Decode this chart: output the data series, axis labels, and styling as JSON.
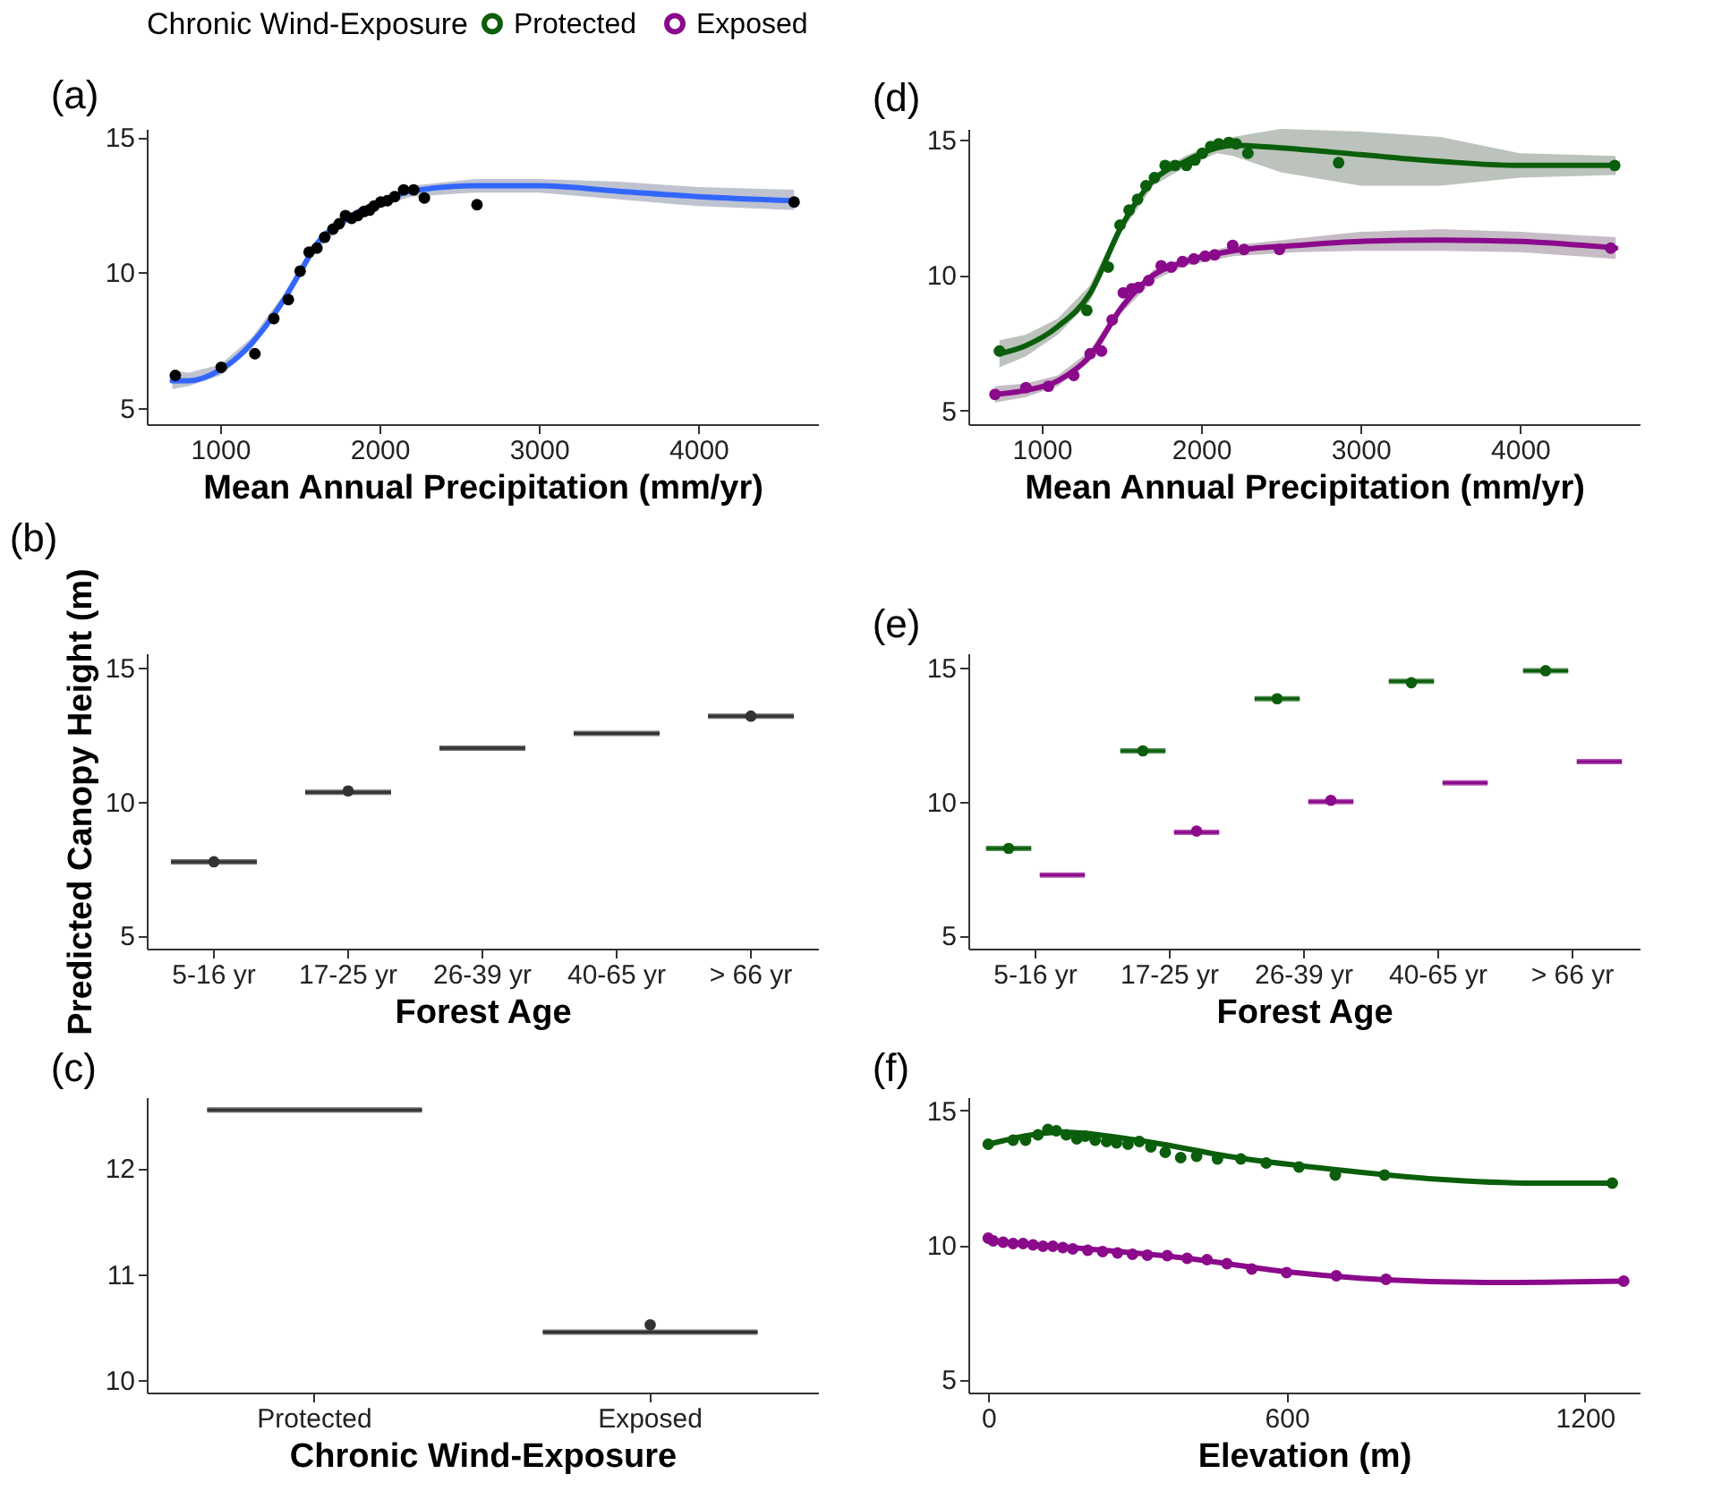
{
  "chart_data": [
    {
      "type": "line",
      "title": "(a)",
      "xlabel": "Mean Annual Precipitation (mm/yr)",
      "xlim": [
        540,
        4750
      ],
      "xticks": [
        1000,
        2000,
        3000,
        4000
      ],
      "ylim": [
        4.4,
        15.3
      ],
      "yticks": [
        5,
        10,
        15
      ],
      "grid": false,
      "series": [
        {
          "type": "line",
          "color": "#3366ff",
          "x": [
            700,
            800,
            1000,
            1200,
            1400,
            1500,
            1600,
            1800,
            2000,
            2200,
            2600,
            3000,
            3500,
            4000,
            4600
          ],
          "values": [
            6.0,
            6.0,
            6.4,
            7.4,
            9.0,
            10.0,
            11.0,
            12.0,
            12.6,
            13.0,
            13.2,
            13.2,
            13.0,
            12.8,
            12.65
          ],
          "lower": [
            5.7,
            5.8,
            6.2,
            7.2,
            8.8,
            9.8,
            10.8,
            11.85,
            12.45,
            12.8,
            12.95,
            12.95,
            12.7,
            12.45,
            12.3
          ],
          "upper": [
            6.4,
            6.3,
            6.6,
            7.6,
            9.2,
            10.2,
            11.2,
            12.15,
            12.75,
            13.2,
            13.45,
            13.45,
            13.35,
            13.15,
            13.05
          ]
        },
        {
          "type": "scatter",
          "color": "#000000",
          "x": [
            719,
            1007,
            1218,
            1337,
            1428,
            1502,
            1558,
            1607,
            1656,
            1708,
            1747,
            1786,
            1825,
            1863,
            1902,
            1937,
            1965,
            2007,
            2049,
            2095,
            2151,
            2214,
            2281,
            2611,
            4600
          ],
          "values": [
            6.2,
            6.5,
            7.0,
            8.3,
            9.0,
            10.05,
            10.75,
            10.9,
            11.3,
            11.6,
            11.8,
            12.1,
            12.0,
            12.1,
            12.25,
            12.3,
            12.45,
            12.6,
            12.65,
            12.8,
            13.05,
            13.05,
            12.75,
            12.5,
            12.6
          ]
        }
      ]
    },
    {
      "type": "line",
      "title": "(d)",
      "xlabel": "Mean Annual Precipitation (mm/yr)",
      "legend_title": "Chronic Wind-Exposure",
      "legend": "top",
      "xlim": [
        540,
        4750
      ],
      "xticks": [
        1000,
        2000,
        3000,
        4000
      ],
      "ylim": [
        4.5,
        15.4
      ],
      "yticks": [
        5,
        10,
        15
      ],
      "grid": false,
      "series": [
        {
          "type": "line",
          "name": "Protected",
          "color": "#0b5e0b",
          "x": [
            735,
            900,
            1100,
            1300,
            1500,
            1700,
            1900,
            2100,
            2200,
            2500,
            3000,
            3500,
            4000,
            4600
          ],
          "values": [
            7.1,
            7.4,
            8.1,
            9.3,
            11.8,
            13.5,
            14.2,
            14.7,
            14.8,
            14.7,
            14.45,
            14.2,
            14.05,
            14.05
          ],
          "lower": [
            6.6,
            7.0,
            7.8,
            9.0,
            11.6,
            13.3,
            14.0,
            14.5,
            14.4,
            13.8,
            13.3,
            13.3,
            13.6,
            13.7
          ],
          "upper": [
            7.6,
            7.8,
            8.4,
            9.6,
            12.0,
            13.7,
            14.4,
            14.9,
            15.1,
            15.4,
            15.3,
            15.1,
            14.5,
            14.4
          ]
        },
        {
          "type": "scatter",
          "color": "#0b5e0b",
          "x": [
            735,
            1283,
            1417,
            1491,
            1548,
            1601,
            1654,
            1707,
            1774,
            1837,
            1908,
            1961,
            2007,
            2060,
            2110,
            2173,
            2219,
            2293,
            2862,
            4594
          ],
          "values": [
            7.2,
            8.7,
            10.3,
            11.85,
            12.4,
            12.8,
            13.3,
            13.6,
            14.05,
            14.05,
            14.05,
            14.25,
            14.5,
            14.75,
            14.85,
            14.9,
            14.85,
            14.5,
            14.15,
            14.05
          ]
        },
        {
          "type": "line",
          "name": "Exposed",
          "color": "#8b0a8b",
          "x": [
            707,
            900,
            1100,
            1300,
            1500,
            1700,
            1900,
            2200,
            2600,
            3000,
            3500,
            4000,
            4600
          ],
          "values": [
            5.6,
            5.75,
            6.1,
            7.0,
            8.8,
            10.0,
            10.5,
            10.9,
            11.1,
            11.25,
            11.3,
            11.25,
            11.0
          ],
          "lower": [
            5.3,
            5.5,
            5.9,
            6.8,
            8.6,
            9.8,
            10.35,
            10.7,
            10.85,
            10.9,
            10.9,
            10.85,
            10.6
          ],
          "upper": [
            5.9,
            6.0,
            6.3,
            7.2,
            9.0,
            10.2,
            10.65,
            11.1,
            11.35,
            11.6,
            11.7,
            11.6,
            11.4
          ]
        },
        {
          "type": "scatter",
          "color": "#8b0a8b",
          "x": [
            707,
            901,
            1042,
            1201,
            1304,
            1375,
            1442,
            1512,
            1565,
            1608,
            1671,
            1749,
            1813,
            1883,
            1954,
            2025,
            2085,
            2198,
            2269,
            2491,
            4569
          ],
          "values": [
            5.6,
            5.85,
            5.9,
            6.3,
            7.1,
            7.2,
            8.35,
            9.35,
            9.5,
            9.55,
            9.8,
            10.35,
            10.3,
            10.5,
            10.6,
            10.7,
            10.75,
            11.1,
            10.95,
            10.95,
            11.0
          ]
        }
      ]
    },
    {
      "type": "box",
      "title": "(b)",
      "xlabel": "Forest Age",
      "ylabel": "Predicted Canopy Height (m)",
      "categories": [
        "5-16 yr",
        "17-25 yr",
        "26-39 yr",
        "40-65 yr",
        "> 66 yr"
      ],
      "ylim": [
        4.5,
        15.55
      ],
      "yticks": [
        5,
        10,
        15
      ],
      "grid": false,
      "series": [
        {
          "color": "#333333",
          "boxes": [
            {
              "low": 7.75,
              "q1": 7.75,
              "median": 7.75,
              "q3": 7.75,
              "high": 7.75,
              "outliers": [
                7.75
              ]
            },
            {
              "low": 10.35,
              "q1": 10.35,
              "median": 10.35,
              "q3": 10.35,
              "high": 10.35,
              "outliers": [
                10.4
              ]
            },
            {
              "low": 12.0,
              "q1": 12.0,
              "median": 12.0,
              "q3": 12.0,
              "high": 12.0
            },
            {
              "low": 12.55,
              "q1": 12.55,
              "median": 12.55,
              "q3": 12.55,
              "high": 12.55
            },
            {
              "low": 13.2,
              "q1": 13.2,
              "median": 13.2,
              "q3": 13.2,
              "high": 13.2,
              "outliers": [
                13.2
              ]
            }
          ]
        }
      ]
    },
    {
      "type": "box",
      "title": "(e)",
      "xlabel": "Forest Age",
      "categories": [
        "5-16 yr",
        "17-25 yr",
        "26-39 yr",
        "40-65 yr",
        "> 66 yr"
      ],
      "ylim": [
        4.5,
        15.55
      ],
      "yticks": [
        5,
        10,
        15
      ],
      "grid": false,
      "series": [
        {
          "color": "#0b5e0b",
          "boxes": [
            {
              "low": 8.25,
              "q1": 8.25,
              "median": 8.25,
              "q3": 8.25,
              "high": 8.25,
              "outliers": [
                8.25
              ]
            },
            {
              "low": 11.9,
              "q1": 11.9,
              "median": 11.9,
              "q3": 11.9,
              "high": 11.9,
              "outliers": [
                11.9
              ]
            },
            {
              "low": 13.85,
              "q1": 13.85,
              "median": 13.85,
              "q3": 13.85,
              "high": 13.85,
              "outliers": [
                13.85
              ]
            },
            {
              "low": 14.5,
              "q1": 14.5,
              "median": 14.5,
              "q3": 14.5,
              "high": 14.5,
              "outliers": [
                14.45
              ]
            },
            {
              "low": 14.9,
              "q1": 14.9,
              "median": 14.9,
              "q3": 14.9,
              "high": 14.9,
              "outliers": [
                14.9
              ]
            }
          ]
        },
        {
          "color": "#8b0a8b",
          "boxes": [
            {
              "low": 7.25,
              "q1": 7.25,
              "median": 7.25,
              "q3": 7.25,
              "high": 7.25
            },
            {
              "low": 8.85,
              "q1": 8.85,
              "median": 8.85,
              "q3": 8.85,
              "high": 8.85,
              "outliers": [
                8.9
              ]
            },
            {
              "low": 10.0,
              "q1": 10.0,
              "median": 10.0,
              "q3": 10.0,
              "high": 10.0,
              "outliers": [
                10.05
              ]
            },
            {
              "low": 10.7,
              "q1": 10.7,
              "median": 10.7,
              "q3": 10.7,
              "high": 10.7
            },
            {
              "low": 11.5,
              "q1": 11.5,
              "median": 11.5,
              "q3": 11.5,
              "high": 11.5
            }
          ]
        }
      ]
    },
    {
      "type": "box",
      "title": "(c)",
      "xlabel": "Chronic Wind-Exposure",
      "categories": [
        "Protected",
        "Exposed"
      ],
      "ylim": [
        9.88,
        12.67
      ],
      "yticks": [
        10,
        11,
        12
      ],
      "grid": false,
      "series": [
        {
          "color": "#333333",
          "boxes": [
            {
              "low": 12.55,
              "q1": 12.55,
              "median": 12.55,
              "q3": 12.55,
              "high": 12.55
            },
            {
              "low": 10.45,
              "q1": 10.45,
              "median": 10.45,
              "q3": 10.45,
              "high": 10.45,
              "outliers": [
                10.52
              ]
            }
          ]
        }
      ]
    },
    {
      "type": "line",
      "title": "(f)",
      "xlabel": "Elevation (m)",
      "xlim": [
        -40,
        1310
      ],
      "xticks": [
        0,
        600,
        1200
      ],
      "ylim": [
        4.5,
        15.5
      ],
      "yticks": [
        5,
        10,
        15
      ],
      "grid": false,
      "series": [
        {
          "type": "line",
          "color": "#0b5e0b",
          "x": [
            0,
            150,
            300,
            500,
            700,
            900,
            1100,
            1255
          ],
          "values": [
            13.75,
            14.2,
            13.9,
            13.25,
            12.8,
            12.45,
            12.3,
            12.3
          ]
        },
        {
          "type": "scatter",
          "color": "#0b5e0b",
          "x": [
            0,
            50,
            75,
            100,
            120,
            137,
            157,
            178,
            195,
            215,
            238,
            258,
            281,
            304,
            327,
            356,
            387,
            419,
            461,
            508,
            559,
            625,
            698,
            797,
            1255
          ],
          "values": [
            13.75,
            13.9,
            13.9,
            14.1,
            14.3,
            14.25,
            14.1,
            13.95,
            14.05,
            13.9,
            13.85,
            13.8,
            13.75,
            13.85,
            13.65,
            13.45,
            13.25,
            13.3,
            13.2,
            13.2,
            13.05,
            12.9,
            12.6,
            12.6,
            12.3
          ]
        },
        {
          "type": "line",
          "color": "#8b0a8b",
          "x": [
            0,
            200,
            400,
            600,
            800,
            1000,
            1278
          ],
          "values": [
            10.15,
            9.85,
            9.5,
            9.0,
            8.7,
            8.6,
            8.65
          ]
        },
        {
          "type": "scatter",
          "color": "#8b0a8b",
          "x": [
            0,
            10,
            30,
            50,
            70,
            90,
            110,
            130,
            150,
            170,
            200,
            230,
            260,
            290,
            320,
            360,
            400,
            440,
            480,
            530,
            600,
            700,
            800,
            1278
          ],
          "values": [
            10.25,
            10.15,
            10.1,
            10.05,
            10.05,
            10.0,
            9.95,
            9.95,
            9.9,
            9.85,
            9.8,
            9.75,
            9.7,
            9.65,
            9.62,
            9.6,
            9.5,
            9.45,
            9.3,
            9.1,
            8.97,
            8.85,
            8.72,
            8.65
          ]
        }
      ]
    }
  ]
}
